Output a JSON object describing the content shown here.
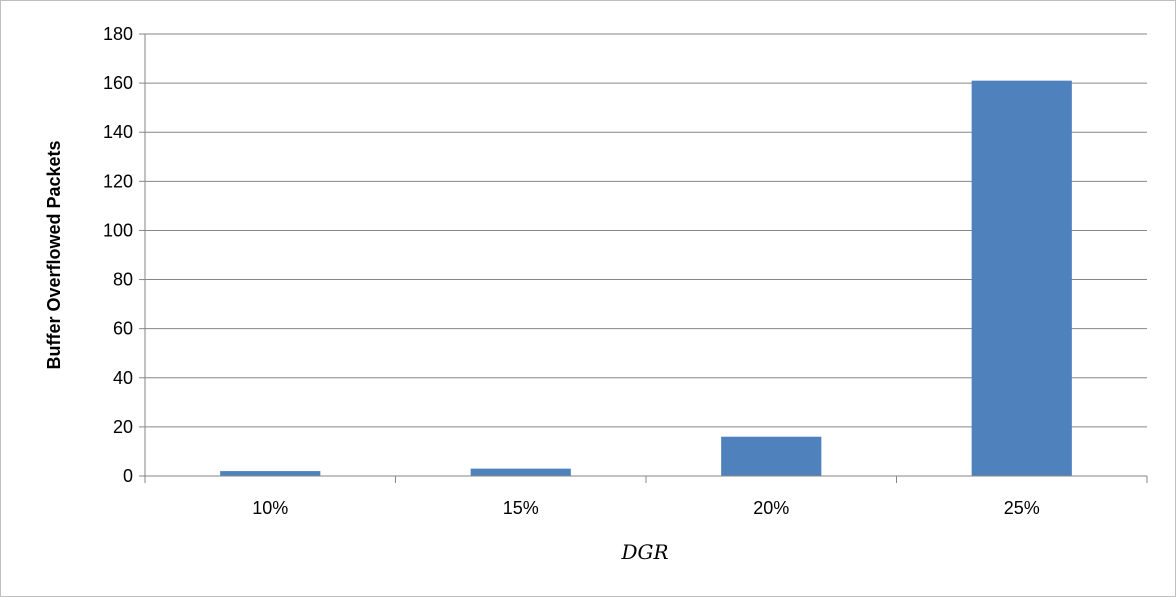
{
  "chart_data": {
    "type": "bar",
    "categories": [
      "10%",
      "15%",
      "20%",
      "25%"
    ],
    "values": [
      2,
      3,
      16,
      161
    ],
    "title": "",
    "xlabel": "DGR",
    "ylabel": "Buffer Overflowed Packets",
    "ylim": [
      0,
      180
    ],
    "ytick_step": 20,
    "grid": true,
    "legend": "none",
    "bar_color": "#4f81bd"
  }
}
